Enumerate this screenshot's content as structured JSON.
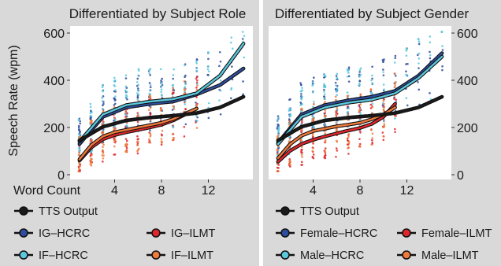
{
  "chart_data": [
    {
      "type": "scatter",
      "title": "Differentiated by Subject Role",
      "ylabel": "Speech Rate (wpm)",
      "xlabel": "Word Count",
      "xlim": [
        0.2,
        15.8
      ],
      "ylim": [
        -20,
        630
      ],
      "x_ticks": [
        4,
        8,
        12
      ],
      "y_ticks": [
        0,
        200,
        400,
        600
      ],
      "y_axis_side": "left",
      "legend_placement": "bottom",
      "grid": false,
      "series": [
        {
          "name": "TTS Output",
          "color": "#1a1a1a",
          "curve_x": [
            1,
            3,
            5,
            7,
            9,
            11,
            13,
            15
          ],
          "curve_y": [
            145,
            203,
            230,
            242,
            250,
            261,
            285,
            330
          ]
        },
        {
          "name": "IG–HCRC",
          "color": "#2f4d9e",
          "curve_x": [
            1,
            3,
            5,
            7,
            9,
            11,
            13,
            15
          ],
          "curve_y": [
            130,
            245,
            285,
            300,
            310,
            340,
            380,
            450
          ]
        },
        {
          "name": "IG–ILMT",
          "color": "#e0262c",
          "curve_x": [
            1,
            2,
            3,
            4,
            5,
            6,
            7,
            8,
            9,
            10,
            11
          ],
          "curve_y": [
            60,
            115,
            150,
            168,
            180,
            190,
            200,
            212,
            230,
            255,
            280
          ]
        },
        {
          "name": "IF–HCRC",
          "color": "#5bc8de",
          "curve_x": [
            1,
            3,
            5,
            7,
            9,
            11,
            13,
            15
          ],
          "curve_y": [
            140,
            255,
            295,
            310,
            320,
            345,
            420,
            555
          ]
        },
        {
          "name": "IF–ILMT",
          "color": "#ef7a3c",
          "curve_x": [
            1,
            2,
            3,
            4,
            5,
            6,
            7,
            8,
            9,
            10,
            11
          ],
          "curve_y": [
            65,
            125,
            162,
            180,
            190,
            200,
            210,
            220,
            236,
            258,
            280
          ]
        }
      ],
      "legend": {
        "rows": [
          [
            "TTS Output"
          ],
          [
            "IG–HCRC",
            "IG–ILMT"
          ],
          [
            "IF–HCRC",
            "IF–ILMT"
          ]
        ]
      }
    },
    {
      "type": "scatter",
      "title": "Differentiated by Subject Gender",
      "xlim": [
        0.2,
        15.8
      ],
      "ylim": [
        -20,
        630
      ],
      "x_ticks": [
        4,
        8,
        12
      ],
      "y_ticks": [
        0,
        200,
        400,
        600
      ],
      "y_axis_side": "right",
      "legend_placement": "bottom",
      "grid": false,
      "series": [
        {
          "name": "TTS Output",
          "color": "#1a1a1a",
          "curve_x": [
            1,
            3,
            5,
            7,
            9,
            11,
            13,
            15
          ],
          "curve_y": [
            145,
            203,
            230,
            242,
            250,
            261,
            285,
            330
          ]
        },
        {
          "name": "Female–HCRC",
          "color": "#2f4d9e",
          "curve_x": [
            1,
            3,
            5,
            7,
            9,
            11,
            13,
            15
          ],
          "curve_y": [
            135,
            255,
            295,
            315,
            330,
            355,
            420,
            515
          ]
        },
        {
          "name": "Female–ILMT",
          "color": "#e0262c",
          "curve_x": [
            1,
            2,
            3,
            4,
            5,
            6,
            7,
            8,
            9,
            10,
            11
          ],
          "curve_y": [
            55,
            100,
            130,
            148,
            162,
            175,
            187,
            198,
            215,
            245,
            300
          ]
        },
        {
          "name": "Male–HCRC",
          "color": "#5bc8de",
          "curve_x": [
            1,
            3,
            5,
            7,
            9,
            11,
            13,
            15
          ],
          "curve_y": [
            130,
            245,
            285,
            305,
            318,
            345,
            410,
            500
          ]
        },
        {
          "name": "Male–ILMT",
          "color": "#ef7a3c",
          "curve_x": [
            1,
            2,
            3,
            4,
            5,
            6,
            7,
            8,
            9,
            10,
            11
          ],
          "curve_y": [
            70,
            128,
            165,
            185,
            195,
            205,
            212,
            220,
            235,
            255,
            285
          ]
        }
      ],
      "legend": {
        "rows": [
          [
            "TTS Output"
          ],
          [
            "Female–HCRC",
            "Female–ILMT"
          ],
          [
            "Male–HCRC",
            "Male–ILMT"
          ]
        ]
      }
    }
  ]
}
